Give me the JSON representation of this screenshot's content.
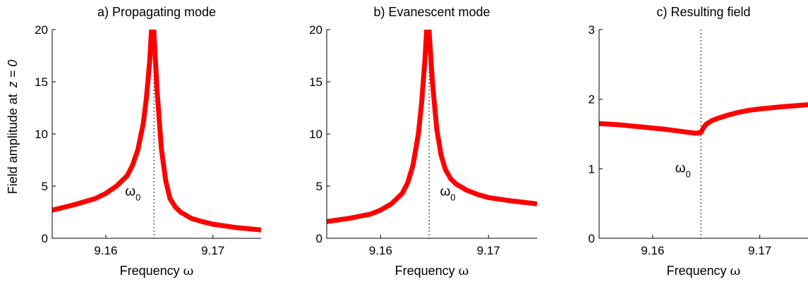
{
  "chart_data": [
    {
      "type": "line",
      "title": "a) Propagating mode",
      "xlabel": "Frequency",
      "xlabel_symbol": "ω",
      "ylabel_prefix": "Field amplitude at ",
      "ylabel_var": "z = 0",
      "xlim": [
        9.155,
        9.1745
      ],
      "ylim": [
        0,
        20
      ],
      "xticks": [
        9.16,
        9.17
      ],
      "xtick_labels": [
        "9.16",
        "9.17"
      ],
      "yticks": [
        0,
        5,
        10,
        15,
        20
      ],
      "ytick_labels": [
        "0",
        "5",
        "10",
        "15",
        "20"
      ],
      "marker_x": 9.1645,
      "annotation": {
        "text": "ω",
        "sub": "0",
        "x": 9.1618,
        "y": 4.1
      },
      "series": [
        {
          "color": "#ff0000",
          "x": [
            9.155,
            9.157,
            9.159,
            9.16,
            9.161,
            9.162,
            9.1625,
            9.163,
            9.1635,
            9.1638,
            9.1641,
            9.1643,
            9.16445,
            9.1648,
            9.1652,
            9.1656,
            9.166,
            9.1665,
            9.167,
            9.168,
            9.169,
            9.17,
            9.172,
            9.1745
          ],
          "y": [
            2.7,
            3.2,
            3.8,
            4.3,
            5.0,
            6.0,
            7.0,
            8.5,
            11.0,
            13.5,
            17.0,
            20.5,
            20.5,
            14.0,
            8.5,
            5.5,
            3.8,
            3.0,
            2.5,
            1.9,
            1.6,
            1.35,
            1.05,
            0.8
          ]
        }
      ]
    },
    {
      "type": "line",
      "title": "b) Evanescent mode",
      "xlabel": "Frequency",
      "xlabel_symbol": "ω",
      "xlim": [
        9.155,
        9.1745
      ],
      "ylim": [
        0,
        20
      ],
      "xticks": [
        9.16,
        9.17
      ],
      "xtick_labels": [
        "9.16",
        "9.17"
      ],
      "yticks": [
        0,
        5,
        10,
        15,
        20
      ],
      "ytick_labels": [
        "0",
        "5",
        "10",
        "15",
        "20"
      ],
      "marker_x": 9.1645,
      "annotation": {
        "text": "ω",
        "sub": "0",
        "x": 9.1655,
        "y": 4.1
      },
      "series": [
        {
          "color": "#ff0000",
          "x": [
            9.155,
            9.157,
            9.159,
            9.16,
            9.161,
            9.162,
            9.1625,
            9.163,
            9.1635,
            9.1638,
            9.1641,
            9.1643,
            9.16445,
            9.1648,
            9.1652,
            9.1656,
            9.166,
            9.1665,
            9.167,
            9.168,
            9.169,
            9.17,
            9.172,
            9.1745
          ],
          "y": [
            1.6,
            1.9,
            2.3,
            2.7,
            3.3,
            4.3,
            5.3,
            7.0,
            10.0,
            13.0,
            17.0,
            20.5,
            20.5,
            15.0,
            10.5,
            8.0,
            6.6,
            5.7,
            5.2,
            4.6,
            4.2,
            3.9,
            3.6,
            3.3
          ]
        }
      ]
    },
    {
      "type": "line",
      "title": "c) Resulting field",
      "xlabel": "Frequency",
      "xlabel_symbol": "ω",
      "xlim": [
        9.155,
        9.1745
      ],
      "ylim": [
        0,
        3
      ],
      "xticks": [
        9.16,
        9.17
      ],
      "xtick_labels": [
        "9.16",
        "9.17"
      ],
      "yticks": [
        0,
        1,
        2,
        3
      ],
      "ytick_labels": [
        "0",
        "1",
        "2",
        "3"
      ],
      "marker_x": 9.1645,
      "annotation": {
        "text": "ω",
        "sub": "0",
        "x": 9.1621,
        "y": 0.95
      },
      "series": [
        {
          "color": "#ff0000",
          "x": [
            9.155,
            9.157,
            9.159,
            9.161,
            9.163,
            9.164,
            9.1645,
            9.1647,
            9.165,
            9.1655,
            9.166,
            9.167,
            9.168,
            9.169,
            9.17,
            9.172,
            9.1745
          ],
          "y": [
            1.65,
            1.63,
            1.6,
            1.57,
            1.53,
            1.51,
            1.52,
            1.58,
            1.64,
            1.69,
            1.72,
            1.77,
            1.81,
            1.84,
            1.86,
            1.89,
            1.92
          ]
        }
      ]
    }
  ]
}
